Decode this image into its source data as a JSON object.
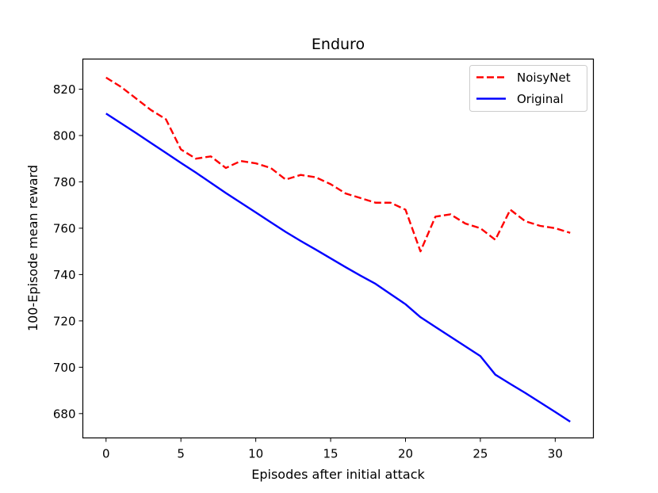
{
  "chart_data": {
    "type": "line",
    "title": "Enduro",
    "xlabel": "Episodes after initial attack",
    "ylabel": "100-Episode mean reward",
    "xlim": [
      -1.55,
      32.55
    ],
    "ylim": [
      669.5,
      833.0
    ],
    "xticks": [
      0,
      5,
      10,
      15,
      20,
      25,
      30
    ],
    "yticks": [
      680,
      700,
      720,
      740,
      760,
      780,
      800,
      820
    ],
    "legend_position": "upper right",
    "grid": false,
    "series": [
      {
        "name": "NoisyNet",
        "color": "#ff0000",
        "style": "dashed",
        "x": [
          0,
          1,
          2,
          3,
          4,
          5,
          6,
          7,
          8,
          9,
          10,
          11,
          12,
          13,
          14,
          15,
          16,
          17,
          18,
          19,
          20,
          21,
          22,
          23,
          24,
          25,
          26,
          27,
          28,
          29,
          30,
          31
        ],
        "y": [
          825,
          821,
          816,
          811,
          807,
          794,
          790,
          791,
          786,
          789,
          788,
          786,
          781,
          783,
          782,
          779,
          775,
          773,
          771,
          771,
          768,
          750,
          765,
          766,
          762,
          760,
          755,
          768,
          763,
          761,
          760,
          758
        ]
      },
      {
        "name": "Original",
        "color": "#0000ff",
        "style": "solid",
        "x": [
          0,
          1,
          2,
          3,
          4,
          5,
          6,
          7,
          8,
          9,
          10,
          11,
          12,
          13,
          14,
          15,
          16,
          17,
          18,
          19,
          20,
          21,
          22,
          23,
          24,
          25,
          26,
          27,
          28,
          29,
          30,
          31
        ],
        "y": [
          809.5,
          805.3,
          801.1,
          796.8,
          792.5,
          788.2,
          784.0,
          779.6,
          775.2,
          771.0,
          766.8,
          762.6,
          758.4,
          754.5,
          750.8,
          747.0,
          743.2,
          739.5,
          736.0,
          731.6,
          727.2,
          721.6,
          717.4,
          713.2,
          709.0,
          704.8,
          696.8,
          692.8,
          688.9,
          684.8,
          680.7,
          676.5
        ]
      }
    ]
  }
}
